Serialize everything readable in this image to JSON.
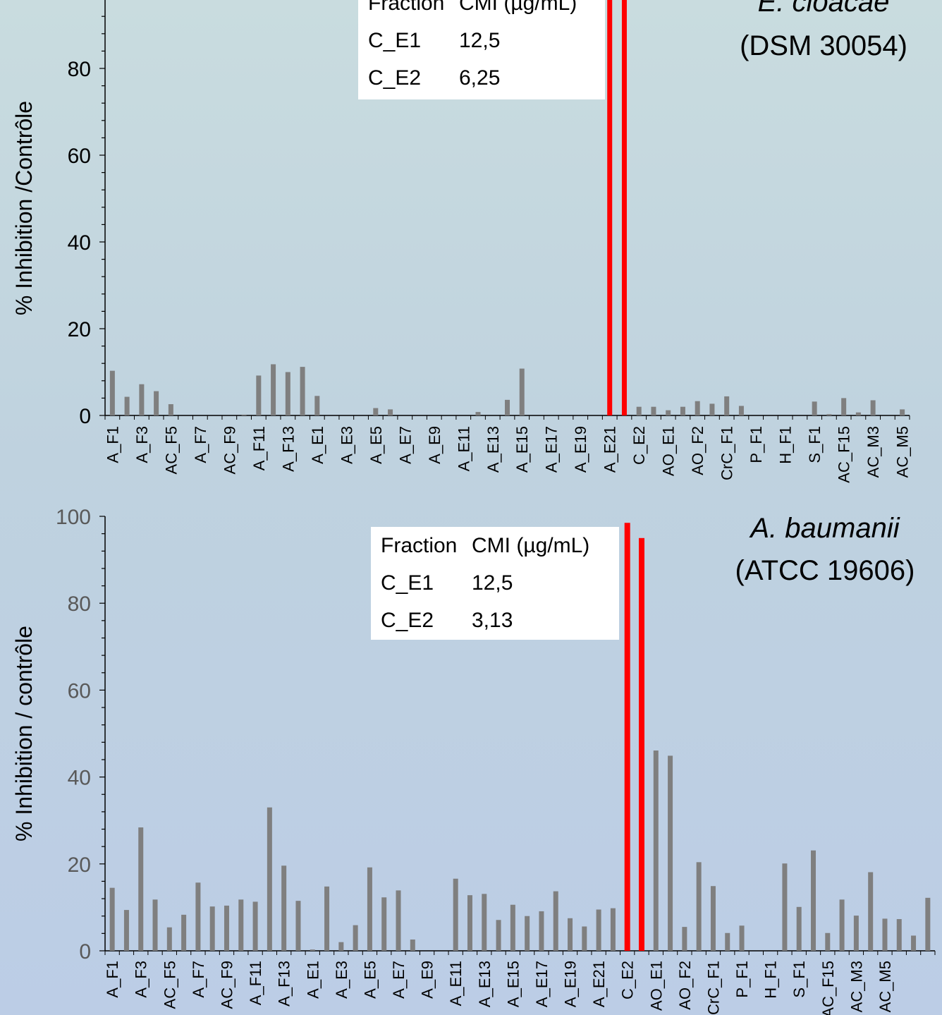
{
  "chart_data": [
    {
      "type": "bar",
      "title": "",
      "species_name": "E. cloacae",
      "strain": "(DSM 30054)",
      "ylabel": "% Inhibition /Contrôle",
      "ylim": [
        0,
        100
      ],
      "yticks": [
        "0",
        "20",
        "40",
        "60",
        "80"
      ],
      "tick_labels": [
        "A_F1",
        "A_F3",
        "AC_F5",
        "A_F7",
        "AC_F9",
        "A_F11",
        "A_F13",
        "A_E1",
        "A_E3",
        "A_E5",
        "A_E7",
        "A_E9",
        "A_E11",
        "A_E13",
        "A_E15",
        "A_E17",
        "A_E19",
        "A_E21",
        "C_E2",
        "AO_E1",
        "AO_F2",
        "CrC_F1",
        "P_F1",
        "H_F1",
        "S_F1",
        "AC_F15",
        "AC_M3",
        "AC_M5"
      ],
      "values": [
        10.3,
        4.3,
        7.2,
        5.6,
        2.6,
        0,
        0,
        0,
        0,
        0.2,
        9.2,
        11.8,
        10.0,
        11.2,
        4.5,
        0,
        0,
        0,
        1.7,
        1.4,
        0,
        0,
        0,
        0,
        0,
        0.8,
        0,
        3.6,
        10.8,
        0,
        0,
        0,
        0,
        0,
        100,
        100,
        2.0,
        2.0,
        1.2,
        2.0,
        3.3,
        2.7,
        4.4,
        2.2,
        0,
        0,
        0,
        0,
        3.2,
        0.3,
        4.0,
        0.7,
        3.5,
        0,
        1.4
      ],
      "highlight_indices": [
        34,
        35
      ],
      "colors": {
        "normal": "#7f7f7f",
        "highlight": "#ff0000"
      },
      "table": {
        "header": [
          "Fraction",
          "CMI (µg/mL)"
        ],
        "rows": [
          [
            "C_E1",
            "12,5"
          ],
          [
            "C_E2",
            "6,25"
          ]
        ]
      }
    },
    {
      "type": "bar",
      "title": "",
      "species_name": "A. baumanii",
      "strain": "(ATCC 19606)",
      "ylabel": "% Inhibition / contrôle",
      "ylim": [
        0,
        100
      ],
      "yticks": [
        "0",
        "20",
        "40",
        "60",
        "80",
        "100"
      ],
      "tick_labels": [
        "A_F1",
        "A_F3",
        "AC_F5",
        "A_F7",
        "AC_F9",
        "A_F11",
        "A_F13",
        "A_E1",
        "A_E3",
        "A_E5",
        "A_E7",
        "A_E9",
        "A_E11",
        "A_E13",
        "A_E15",
        "A_E17",
        "A_E19",
        "A_E21",
        "C_E2",
        "AO_E1",
        "AO_F2",
        "CrC_F1",
        "P_F1",
        "H_F1",
        "S_F1",
        "AC_F15",
        "AC_M3",
        "AC_M5"
      ],
      "values": [
        14.5,
        9.4,
        28.4,
        11.8,
        5.4,
        8.3,
        15.7,
        10.2,
        10.4,
        11.8,
        11.3,
        33.0,
        19.6,
        11.5,
        0.3,
        14.8,
        2.0,
        5.9,
        19.2,
        12.3,
        13.9,
        2.6,
        0,
        0,
        16.6,
        12.8,
        13.1,
        7.1,
        10.6,
        8.0,
        9.1,
        13.7,
        7.5,
        5.6,
        9.5,
        9.8,
        98.5,
        95.0,
        46.1,
        44.9,
        5.5,
        20.4,
        14.9,
        4.1,
        5.8,
        0,
        0,
        20.1,
        10.1,
        23.1,
        4.1,
        11.8,
        8.1,
        18.1,
        7.4,
        7.3,
        3.5,
        12.2
      ],
      "highlight_indices": [
        36,
        37
      ],
      "colors": {
        "normal": "#7f7f7f",
        "highlight": "#ff0000"
      },
      "table": {
        "header": [
          "Fraction",
          "CMI (µg/mL)"
        ],
        "rows": [
          [
            "C_E1",
            "12,5"
          ],
          [
            "C_E2",
            "3,13"
          ]
        ]
      }
    }
  ]
}
